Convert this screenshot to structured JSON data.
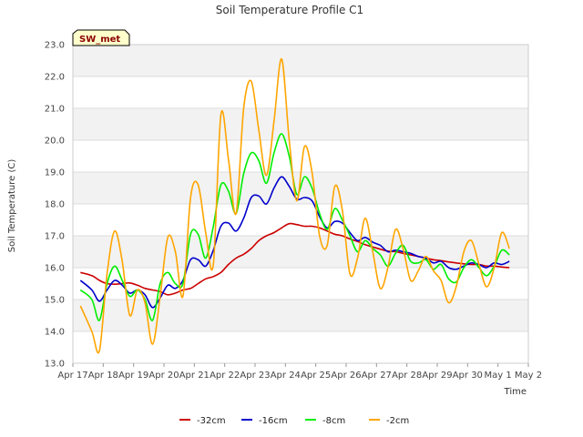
{
  "chart_data": {
    "type": "line",
    "title": "Soil Temperature Profile C1",
    "xlabel": "Time",
    "ylabel": "Soil Temperature (C)",
    "badge": "SW_met",
    "ylim": [
      13.0,
      23.0
    ],
    "yticks": [
      "13.0",
      "14.0",
      "15.0",
      "16.0",
      "17.0",
      "18.0",
      "19.0",
      "20.0",
      "21.0",
      "22.0",
      "23.0"
    ],
    "xlim": [
      "2024-04-17",
      "2024-05-02"
    ],
    "xticks": [
      "Apr 17",
      "Apr 18",
      "Apr 19",
      "Apr 20",
      "Apr 21",
      "Apr 22",
      "Apr 23",
      "Apr 24",
      "Apr 25",
      "Apr 26",
      "Apr 27",
      "Apr 28",
      "Apr 29",
      "Apr 30",
      "May 1",
      "May 2"
    ],
    "grid": true,
    "legend_position": "bottom",
    "x": [
      "2024-04-17 06:00",
      "2024-04-17 15:00",
      "2024-04-17 21:00",
      "2024-04-18 03:00",
      "2024-04-18 09:00",
      "2024-04-18 15:00",
      "2024-04-18 21:00",
      "2024-04-19 03:00",
      "2024-04-19 09:00",
      "2024-04-19 15:00",
      "2024-04-19 21:00",
      "2024-04-20 03:00",
      "2024-04-20 09:00",
      "2024-04-20 15:00",
      "2024-04-20 21:00",
      "2024-04-21 03:00",
      "2024-04-21 09:00",
      "2024-04-21 15:00",
      "2024-04-21 21:00",
      "2024-04-22 03:00",
      "2024-04-22 09:00",
      "2024-04-22 15:00",
      "2024-04-22 21:00",
      "2024-04-23 03:00",
      "2024-04-23 09:00",
      "2024-04-23 15:00",
      "2024-04-23 21:00",
      "2024-04-24 03:00",
      "2024-04-24 09:00",
      "2024-04-24 15:00",
      "2024-04-24 21:00",
      "2024-04-25 03:00",
      "2024-04-25 09:00",
      "2024-04-25 15:00",
      "2024-04-25 21:00",
      "2024-04-26 03:00",
      "2024-04-26 09:00",
      "2024-04-26 15:00",
      "2024-04-26 21:00",
      "2024-04-27 03:00",
      "2024-04-27 09:00",
      "2024-04-27 15:00",
      "2024-04-27 21:00",
      "2024-04-28 03:00",
      "2024-04-28 09:00",
      "2024-04-28 15:00",
      "2024-04-28 21:00",
      "2024-04-29 03:00",
      "2024-04-29 09:00",
      "2024-04-29 15:00",
      "2024-04-29 21:00",
      "2024-04-30 03:00",
      "2024-04-30 09:00",
      "2024-04-30 15:00",
      "2024-04-30 21:00",
      "2024-05-01 03:00",
      "2024-05-01 09:00"
    ],
    "series": [
      {
        "name": "-32cm",
        "color": "#cc0000",
        "values": [
          15.85,
          15.75,
          15.6,
          15.5,
          15.48,
          15.5,
          15.52,
          15.45,
          15.35,
          15.3,
          15.25,
          15.15,
          15.2,
          15.3,
          15.35,
          15.5,
          15.65,
          15.72,
          15.85,
          16.1,
          16.3,
          16.42,
          16.6,
          16.85,
          17.0,
          17.1,
          17.25,
          17.38,
          17.35,
          17.3,
          17.3,
          17.25,
          17.15,
          17.05,
          17.0,
          16.9,
          16.82,
          16.72,
          16.65,
          16.58,
          16.52,
          16.5,
          16.45,
          16.4,
          16.35,
          16.3,
          16.25,
          16.22,
          16.18,
          16.15,
          16.12,
          16.1,
          16.1,
          16.05,
          16.05,
          16.02,
          16.0
        ]
      },
      {
        "name": "-16cm",
        "color": "#0000cc",
        "values": [
          15.6,
          15.3,
          14.95,
          15.3,
          15.6,
          15.45,
          15.2,
          15.3,
          15.15,
          14.75,
          15.05,
          15.45,
          15.35,
          15.6,
          16.25,
          16.25,
          16.05,
          16.55,
          17.3,
          17.4,
          17.15,
          17.55,
          18.2,
          18.25,
          18.0,
          18.5,
          18.85,
          18.55,
          18.15,
          18.2,
          18.1,
          17.6,
          17.25,
          17.45,
          17.4,
          17.1,
          16.85,
          16.95,
          16.8,
          16.7,
          16.5,
          16.55,
          16.5,
          16.45,
          16.35,
          16.3,
          16.15,
          16.2,
          16.0,
          15.95,
          16.05,
          16.15,
          16.1,
          16.0,
          16.15,
          16.1,
          16.2
        ]
      },
      {
        "name": "-8cm",
        "color": "#00ee00",
        "values": [
          15.3,
          15.0,
          14.35,
          15.5,
          16.05,
          15.6,
          15.1,
          15.3,
          15.0,
          14.35,
          15.5,
          15.85,
          15.5,
          15.5,
          17.05,
          17.05,
          16.3,
          17.3,
          18.6,
          18.4,
          17.7,
          18.95,
          19.6,
          19.35,
          18.65,
          19.6,
          20.2,
          19.5,
          18.3,
          18.85,
          18.5,
          17.7,
          17.2,
          17.85,
          17.5,
          17.0,
          16.5,
          16.85,
          16.6,
          16.4,
          16.05,
          16.45,
          16.7,
          16.2,
          16.15,
          16.25,
          15.95,
          16.1,
          15.65,
          15.55,
          16.0,
          16.25,
          16.0,
          15.75,
          16.05,
          16.55,
          16.4
        ]
      },
      {
        "name": "-2cm",
        "color": "#ffa500",
        "values": [
          14.8,
          14.0,
          13.4,
          15.8,
          17.15,
          16.2,
          14.5,
          15.3,
          14.9,
          13.6,
          15.1,
          16.95,
          16.5,
          15.1,
          18.2,
          18.6,
          17.1,
          16.1,
          20.8,
          19.4,
          17.7,
          21.0,
          21.85,
          20.3,
          18.9,
          20.6,
          22.55,
          20.0,
          18.1,
          19.8,
          19.0,
          17.0,
          16.7,
          18.55,
          17.8,
          15.8,
          16.3,
          17.55,
          16.5,
          15.35,
          16.0,
          17.2,
          16.6,
          15.6,
          15.9,
          16.35,
          15.9,
          15.6,
          14.9,
          15.4,
          16.5,
          16.85,
          16.1,
          15.4,
          16.0,
          17.1,
          16.6
        ]
      }
    ]
  }
}
